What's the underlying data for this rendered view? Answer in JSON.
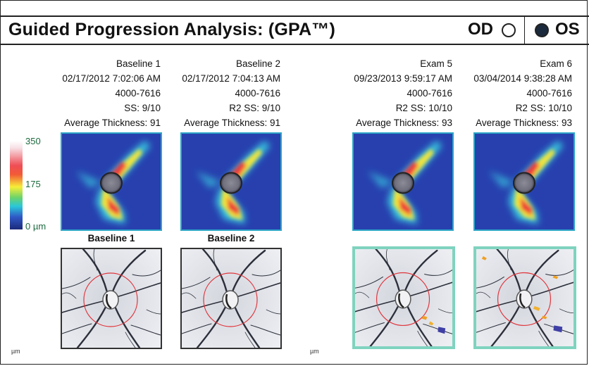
{
  "header": {
    "title": "Guided Progression Analysis: (GPA™)",
    "od_label": "OD",
    "os_label": "OS",
    "selected_eye": "OS"
  },
  "scale": {
    "top_label": "350",
    "mid_label": "175",
    "bottom_label": "0 µm"
  },
  "exams": [
    {
      "name": "Baseline 1",
      "datetime": "02/17/2012 7:02:06 AM",
      "id": "4000-7616",
      "quality": "SS: 9/10",
      "avg_thickness": "Average Thickness: 91",
      "photo_label": "Baseline 1"
    },
    {
      "name": "Baseline 2",
      "datetime": "02/17/2012 7:04:13 AM",
      "id": "4000-7616",
      "quality": "R2   SS: 9/10",
      "avg_thickness": "Average Thickness: 91",
      "photo_label": "Baseline 2"
    },
    {
      "name": "Exam 5",
      "datetime": "09/23/2013 9:59:17 AM",
      "id": "4000-7616",
      "quality": "R2   SS: 10/10",
      "avg_thickness": "Average Thickness: 93",
      "photo_label": ""
    },
    {
      "name": "Exam 6",
      "datetime": "03/04/2014 9:38:28 AM",
      "id": "4000-7616",
      "quality": "R2   SS: 10/10",
      "avg_thickness": "Average Thickness: 93",
      "photo_label": ""
    }
  ],
  "footer": {
    "unit_mark": "µm"
  }
}
